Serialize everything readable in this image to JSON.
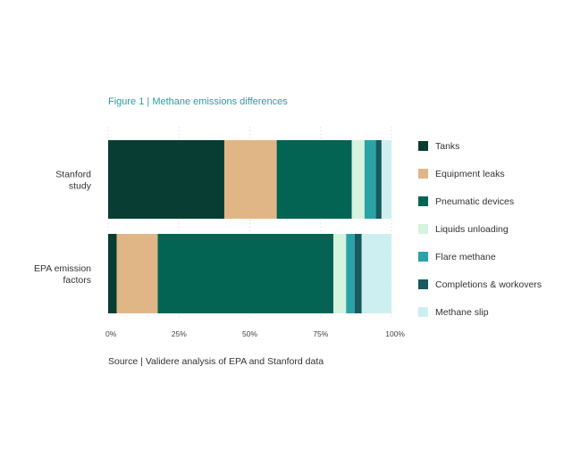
{
  "figure_title": "Figure 1 | Methane emissions differences",
  "source_note": "Source | Validere analysis of EPA and Stanford data",
  "chart_data": {
    "type": "bar",
    "orientation": "horizontal",
    "stacked": true,
    "normalized_percent": true,
    "categories": [
      "Stanford study",
      "EPA emission factors"
    ],
    "category_lines": [
      [
        "Stanford",
        "study"
      ],
      [
        "EPA emission",
        "factors"
      ]
    ],
    "series": [
      {
        "name": "Tanks",
        "color": "#073d33",
        "values": [
          41,
          3
        ]
      },
      {
        "name": "Equipment leaks",
        "color": "#e0b687",
        "values": [
          18.5,
          14.5
        ]
      },
      {
        "name": "Pneumatic devices",
        "color": "#046453",
        "values": [
          26.5,
          62
        ]
      },
      {
        "name": "Liquids unloading",
        "color": "#d5f3df",
        "values": [
          4.5,
          4.5
        ]
      },
      {
        "name": "Flare methane",
        "color": "#2aa3a6",
        "values": [
          4,
          3
        ]
      },
      {
        "name": "Completions & workovers",
        "color": "#165a5e",
        "values": [
          2,
          2.5
        ]
      },
      {
        "name": "Methane slip",
        "color": "#cdeff2",
        "values": [
          3.5,
          10.5
        ]
      }
    ],
    "x_ticks": [
      "0%",
      "25%",
      "50%",
      "75%",
      "100%"
    ],
    "xlim": [
      0,
      100
    ],
    "grid": "vertical dotted",
    "legend_position": "right"
  }
}
